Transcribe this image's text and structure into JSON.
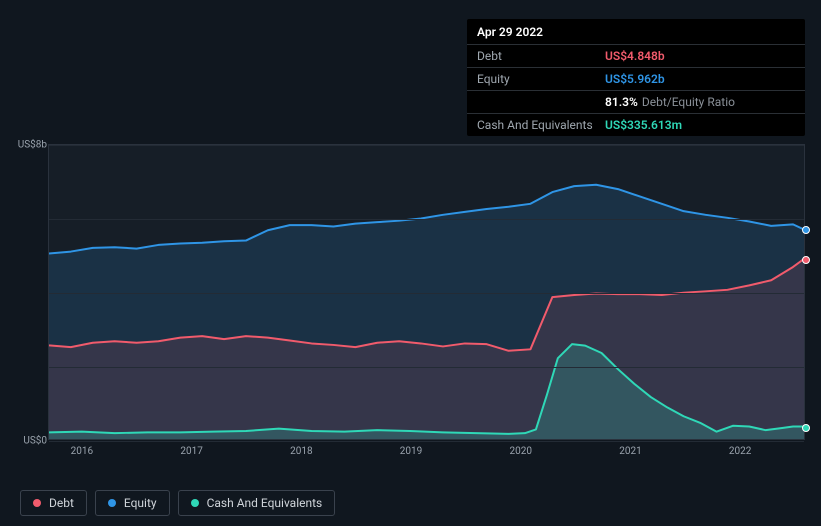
{
  "tooltip": {
    "date": "Apr 29 2022",
    "rows": [
      {
        "label": "Debt",
        "value": "US$4.848b",
        "color": "#f15b6c"
      },
      {
        "label": "Equity",
        "value": "US$5.962b",
        "color": "#2f95e6"
      },
      {
        "label": "",
        "value": "81.3%",
        "sub": "Debt/Equity Ratio",
        "color": "#ffffff"
      },
      {
        "label": "Cash And Equivalents",
        "value": "US$335.613m",
        "color": "#2fd8b7"
      }
    ]
  },
  "chart": {
    "type": "area",
    "background_color": "#161e27",
    "page_background": "#10171f",
    "grid_color": "#232b35",
    "axis_text_color": "#9aa3ad",
    "x_start": 2015.7,
    "x_end": 2022.6,
    "y_min": 0,
    "y_max": 8,
    "y_ticks": [
      {
        "v": 0,
        "label": "US$0"
      },
      {
        "v": 8,
        "label": "US$8b"
      }
    ],
    "y_grid": [
      0,
      2,
      4,
      6,
      8
    ],
    "x_ticks": [
      2016,
      2017,
      2018,
      2019,
      2020,
      2021,
      2022
    ],
    "series": [
      {
        "name": "Equity",
        "color": "#2f95e6",
        "fill": "rgba(47,149,230,0.16)",
        "points": [
          [
            2015.7,
            5.05
          ],
          [
            2015.9,
            5.1
          ],
          [
            2016.1,
            5.2
          ],
          [
            2016.3,
            5.22
          ],
          [
            2016.5,
            5.18
          ],
          [
            2016.7,
            5.28
          ],
          [
            2016.9,
            5.32
          ],
          [
            2017.1,
            5.34
          ],
          [
            2017.3,
            5.38
          ],
          [
            2017.5,
            5.4
          ],
          [
            2017.7,
            5.68
          ],
          [
            2017.9,
            5.82
          ],
          [
            2018.1,
            5.82
          ],
          [
            2018.3,
            5.78
          ],
          [
            2018.5,
            5.86
          ],
          [
            2018.7,
            5.9
          ],
          [
            2018.9,
            5.94
          ],
          [
            2019.1,
            6.0
          ],
          [
            2019.3,
            6.1
          ],
          [
            2019.5,
            6.18
          ],
          [
            2019.7,
            6.26
          ],
          [
            2019.9,
            6.32
          ],
          [
            2020.1,
            6.4
          ],
          [
            2020.3,
            6.72
          ],
          [
            2020.5,
            6.88
          ],
          [
            2020.7,
            6.92
          ],
          [
            2020.9,
            6.8
          ],
          [
            2021.1,
            6.6
          ],
          [
            2021.3,
            6.4
          ],
          [
            2021.5,
            6.2
          ],
          [
            2021.7,
            6.1
          ],
          [
            2021.9,
            6.02
          ],
          [
            2022.1,
            5.92
          ],
          [
            2022.3,
            5.8
          ],
          [
            2022.5,
            5.84
          ],
          [
            2022.6,
            5.7
          ]
        ]
      },
      {
        "name": "Debt",
        "color": "#f15b6c",
        "fill": "rgba(241,91,108,0.13)",
        "points": [
          [
            2015.7,
            2.55
          ],
          [
            2015.9,
            2.5
          ],
          [
            2016.1,
            2.62
          ],
          [
            2016.3,
            2.66
          ],
          [
            2016.5,
            2.62
          ],
          [
            2016.7,
            2.66
          ],
          [
            2016.9,
            2.76
          ],
          [
            2017.1,
            2.8
          ],
          [
            2017.3,
            2.72
          ],
          [
            2017.5,
            2.8
          ],
          [
            2017.7,
            2.76
          ],
          [
            2017.9,
            2.68
          ],
          [
            2018.1,
            2.6
          ],
          [
            2018.3,
            2.56
          ],
          [
            2018.5,
            2.5
          ],
          [
            2018.7,
            2.62
          ],
          [
            2018.9,
            2.66
          ],
          [
            2019.1,
            2.6
          ],
          [
            2019.3,
            2.52
          ],
          [
            2019.5,
            2.6
          ],
          [
            2019.7,
            2.58
          ],
          [
            2019.9,
            2.4
          ],
          [
            2020.1,
            2.44
          ],
          [
            2020.3,
            3.86
          ],
          [
            2020.5,
            3.92
          ],
          [
            2020.7,
            3.96
          ],
          [
            2020.9,
            3.94
          ],
          [
            2021.1,
            3.94
          ],
          [
            2021.3,
            3.92
          ],
          [
            2021.5,
            3.98
          ],
          [
            2021.7,
            4.02
          ],
          [
            2021.9,
            4.06
          ],
          [
            2022.1,
            4.18
          ],
          [
            2022.3,
            4.32
          ],
          [
            2022.5,
            4.68
          ],
          [
            2022.6,
            4.9
          ]
        ]
      },
      {
        "name": "Cash And Equivalents",
        "color": "#2fd8b7",
        "fill": "rgba(47,216,183,0.20)",
        "points": [
          [
            2015.7,
            0.18
          ],
          [
            2016.0,
            0.2
          ],
          [
            2016.3,
            0.16
          ],
          [
            2016.6,
            0.18
          ],
          [
            2016.9,
            0.18
          ],
          [
            2017.2,
            0.2
          ],
          [
            2017.5,
            0.22
          ],
          [
            2017.8,
            0.28
          ],
          [
            2018.1,
            0.22
          ],
          [
            2018.4,
            0.2
          ],
          [
            2018.7,
            0.24
          ],
          [
            2019.0,
            0.22
          ],
          [
            2019.3,
            0.18
          ],
          [
            2019.6,
            0.16
          ],
          [
            2019.9,
            0.14
          ],
          [
            2020.05,
            0.16
          ],
          [
            2020.15,
            0.26
          ],
          [
            2020.25,
            1.2
          ],
          [
            2020.35,
            2.2
          ],
          [
            2020.48,
            2.58
          ],
          [
            2020.6,
            2.54
          ],
          [
            2020.75,
            2.34
          ],
          [
            2020.9,
            1.9
          ],
          [
            2021.05,
            1.5
          ],
          [
            2021.2,
            1.14
          ],
          [
            2021.35,
            0.86
          ],
          [
            2021.5,
            0.62
          ],
          [
            2021.65,
            0.44
          ],
          [
            2021.8,
            0.2
          ],
          [
            2021.95,
            0.36
          ],
          [
            2022.1,
            0.34
          ],
          [
            2022.25,
            0.24
          ],
          [
            2022.4,
            0.3
          ],
          [
            2022.5,
            0.34
          ],
          [
            2022.6,
            0.34
          ]
        ]
      }
    ],
    "legend": [
      {
        "label": "Debt",
        "color": "#f15b6c"
      },
      {
        "label": "Equity",
        "color": "#2f95e6"
      },
      {
        "label": "Cash And Equivalents",
        "color": "#2fd8b7"
      }
    ]
  }
}
